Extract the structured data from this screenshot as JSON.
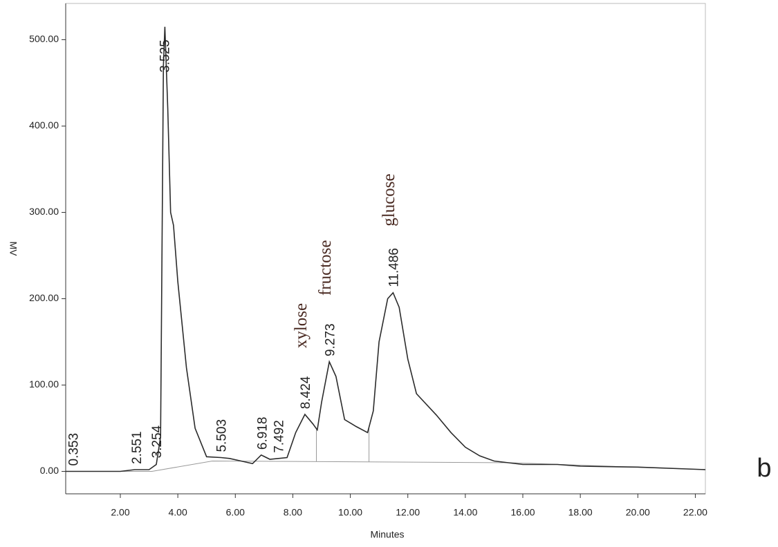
{
  "chart_data": {
    "type": "line",
    "x_label": "Minutes",
    "y_label": "MV",
    "panel_label": "b",
    "x": [
      0.1,
      1.0,
      2.0,
      2.5,
      3.0,
      3.25,
      3.4,
      3.5,
      3.55,
      3.65,
      3.75,
      3.85,
      4.0,
      4.3,
      4.6,
      5.0,
      5.5,
      5.8,
      6.2,
      6.6,
      6.9,
      7.2,
      7.5,
      7.8,
      8.1,
      8.42,
      8.7,
      8.85,
      9.0,
      9.27,
      9.5,
      9.8,
      10.2,
      10.6,
      10.8,
      11.0,
      11.3,
      11.486,
      11.7,
      12.0,
      12.3,
      13.0,
      13.5,
      14.0,
      14.5,
      15.0,
      16.0,
      17.2,
      18.0,
      20.0,
      22.35
    ],
    "values": [
      0,
      0,
      0,
      2,
      2,
      8,
      40,
      470,
      515,
      420,
      300,
      285,
      220,
      120,
      50,
      17,
      16,
      15,
      12,
      9,
      19,
      14,
      15,
      16,
      45,
      66,
      55,
      48,
      80,
      127,
      110,
      60,
      52,
      45,
      70,
      150,
      200,
      207,
      190,
      130,
      90,
      65,
      45,
      28,
      18,
      12,
      8,
      8,
      6,
      5,
      2
    ],
    "color": "#2b2b2b",
    "baseline": {
      "x": [
        0.1,
        3.1,
        5.2,
        15.6,
        22.35
      ],
      "values": [
        0,
        0,
        12,
        10,
        2
      ]
    },
    "drop_lines": [
      8.82,
      10.65
    ],
    "peak_labels": [
      0.353,
      2.551,
      3.254,
      3.525,
      5.503,
      6.918,
      7.492,
      8.424,
      9.273,
      11.486
    ],
    "peak_names": [
      null,
      null,
      null,
      null,
      null,
      null,
      null,
      "xylose",
      "fructose",
      "glucose"
    ],
    "xlim": [
      0.1,
      22.35
    ],
    "ylim": [
      -26,
      542
    ],
    "xticks": [
      {
        "value": 2,
        "label": "2.00"
      },
      {
        "value": 4,
        "label": "4.00"
      },
      {
        "value": 6,
        "label": "6.00"
      },
      {
        "value": 8,
        "label": "8.00"
      },
      {
        "value": 10,
        "label": "10.00"
      },
      {
        "value": 12,
        "label": "12.00"
      },
      {
        "value": 14,
        "label": "14.00"
      },
      {
        "value": 16,
        "label": "16.00"
      },
      {
        "value": 18,
        "label": "18.00"
      },
      {
        "value": 20,
        "label": "20.00"
      },
      {
        "value": 22,
        "label": "22.00"
      }
    ],
    "yticks": [
      {
        "value": 0,
        "label": "0.00"
      },
      {
        "value": 100,
        "label": "100.00"
      },
      {
        "value": 200,
        "label": "200.00"
      },
      {
        "value": 300,
        "label": "300.00"
      },
      {
        "value": 400,
        "label": "400.00"
      },
      {
        "value": 500,
        "label": "500.00"
      }
    ]
  }
}
